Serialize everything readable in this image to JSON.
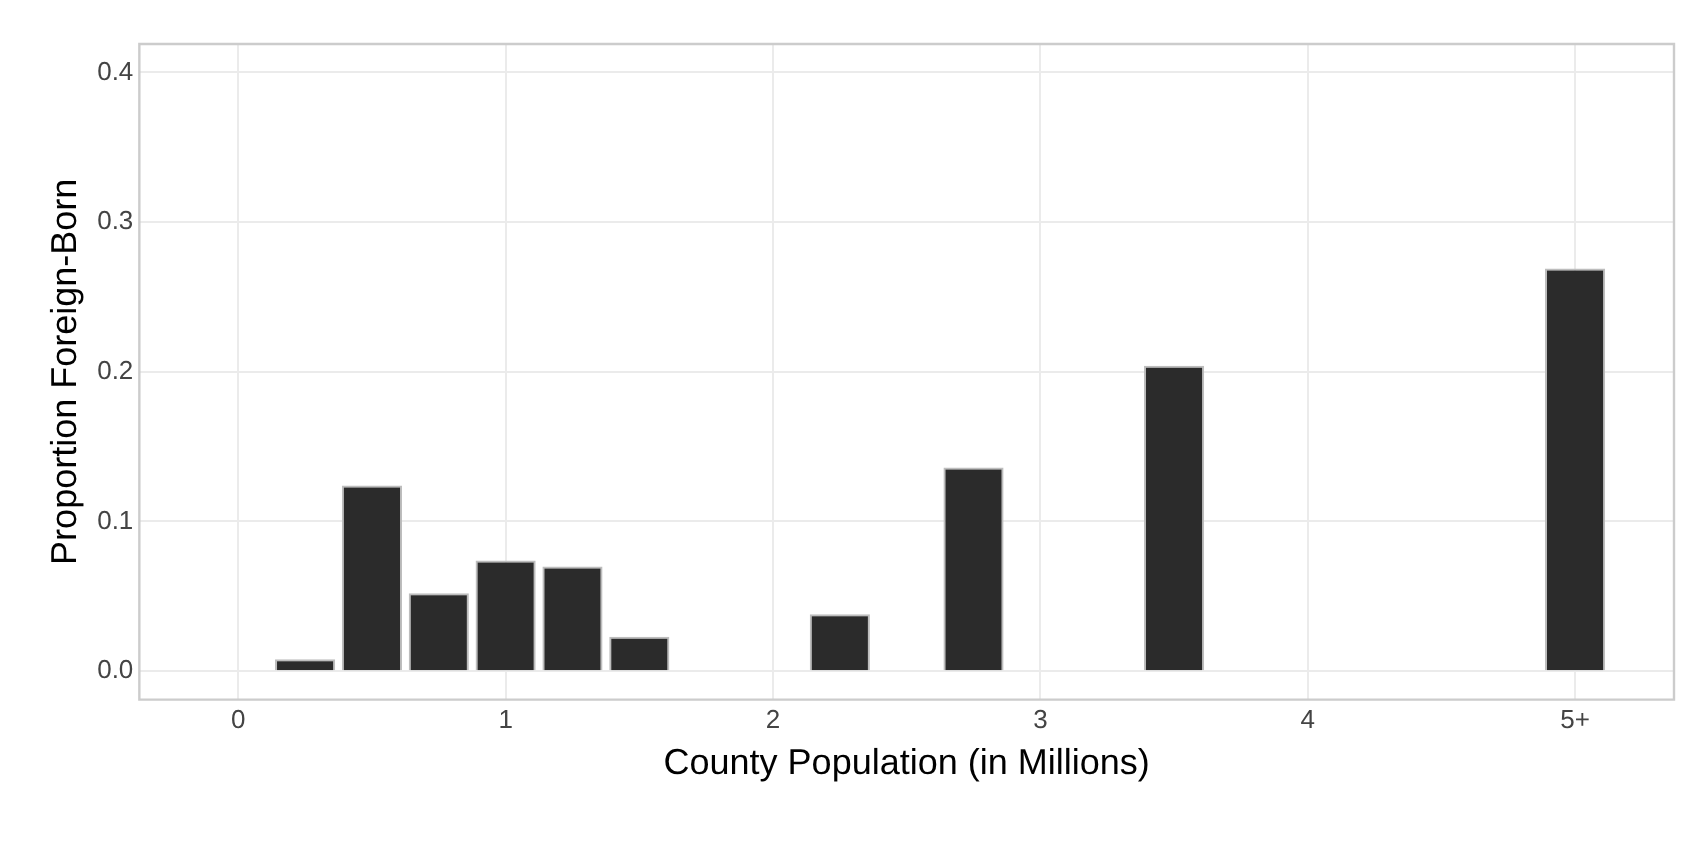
{
  "chart_data": {
    "type": "bar",
    "xlabel": "County Population (in Millions)",
    "ylabel": "Proportion Foreign-Born",
    "x": [
      0.25,
      0.5,
      0.75,
      1,
      1.25,
      1.5,
      2.25,
      2.75,
      3.5,
      5
    ],
    "values": [
      0.008,
      0.124,
      0.052,
      0.074,
      0.07,
      0.023,
      0.038,
      0.136,
      0.204,
      0.269
    ],
    "color": "#2b2b2b",
    "xlim": [
      -0.37,
      5.37
    ],
    "xticks": [
      0,
      1,
      2,
      3,
      4,
      {
        "value": 5,
        "label": "5+"
      }
    ],
    "ylim": [
      -0.019,
      0.419
    ],
    "yticks": [
      {
        "value": 0,
        "label": "0.0"
      },
      0.1,
      0.2,
      0.3,
      0.4
    ],
    "grid": true,
    "legend": false
  }
}
